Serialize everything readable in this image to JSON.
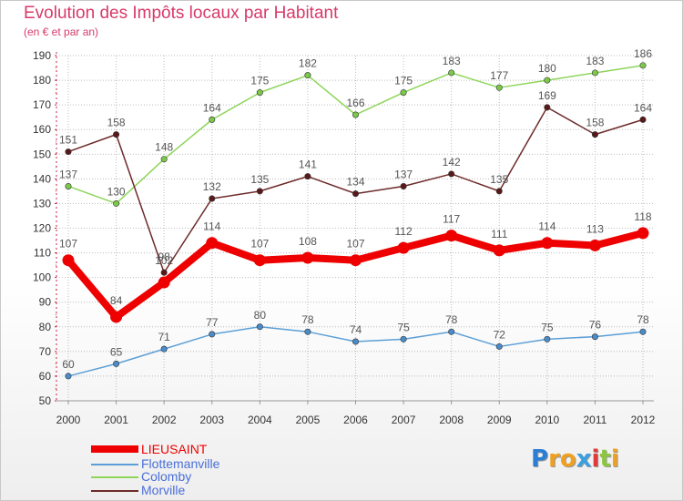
{
  "title": "Evolution des Impôts locaux par Habitant",
  "subtitle": "(en € et par an)",
  "chart_data": {
    "type": "line",
    "title": "Evolution des Impôts locaux par Habitant",
    "ylabel": "(en € et par an)",
    "xlabel": "",
    "ylim": [
      50,
      190
    ],
    "yticks": [
      "50",
      "60",
      "70",
      "80",
      "90",
      "100",
      "110",
      "120",
      "130",
      "140",
      "150",
      "160",
      "170",
      "180",
      "190"
    ],
    "categories": [
      "2000",
      "2001",
      "2002",
      "2003",
      "2004",
      "2005",
      "2006",
      "2007",
      "2008",
      "2009",
      "2010",
      "2011",
      "2012"
    ],
    "series": [
      {
        "name": "Colomby",
        "color": "#8fd55a",
        "dot": "#7cc84a",
        "values": [
          137,
          130,
          148,
          164,
          175,
          182,
          166,
          175,
          183,
          177,
          180,
          183,
          186
        ]
      },
      {
        "name": "Morville",
        "color": "#6e2a2a",
        "dot": "#5a1818",
        "values": [
          151,
          158,
          102,
          132,
          135,
          141,
          134,
          137,
          142,
          135,
          169,
          158,
          164
        ]
      },
      {
        "name": "Flottemanville",
        "color": "#5c9fd6",
        "dot": "#4a8bc8",
        "values": [
          60,
          65,
          71,
          77,
          80,
          78,
          74,
          75,
          78,
          72,
          75,
          76,
          78
        ]
      },
      {
        "name": "LIEUSAINT",
        "color": "#ee0000",
        "dot": "#ee0000",
        "values": [
          107,
          84,
          98,
          114,
          107,
          108,
          107,
          112,
          117,
          111,
          114,
          113,
          118
        ]
      }
    ],
    "data_labels": {
      "Colomby": [
        "137",
        "130",
        "148",
        "164",
        "175",
        "182",
        "166",
        "175",
        "183",
        "177",
        "180",
        "183",
        "186"
      ],
      "Morville": [
        "151",
        "158",
        "102",
        "132",
        "135",
        "141",
        "134",
        "137",
        "142",
        "135",
        "169",
        "158",
        "164"
      ],
      "Flottemanville": [
        "60",
        "65",
        "71",
        "77",
        "80",
        "78",
        "74",
        "75",
        "78",
        "72",
        "75",
        "76",
        "78"
      ],
      "LIEUSAINT": [
        "107",
        "84",
        "98",
        "114",
        "107",
        "108",
        "107",
        "112",
        "117",
        "111",
        "114",
        "113",
        "118"
      ]
    },
    "legend": [
      "LIEUSAINT",
      "Flottemanville",
      "Colomby",
      "Morville"
    ],
    "legend_position": "bottom-left"
  },
  "legend": [
    {
      "label": "LIEUSAINT",
      "color": "#ee0000"
    },
    {
      "label": "Flottemanville",
      "color": "#5c9fd6"
    },
    {
      "label": "Colomby",
      "color": "#8fd55a"
    },
    {
      "label": "Morville",
      "color": "#6e2a2a"
    }
  ],
  "logo": {
    "text": "Proxiti",
    "letters": [
      "P",
      "r",
      "o",
      "x",
      "i",
      "t",
      "i"
    ],
    "colors": [
      "#2a7fd4",
      "#f0a020",
      "#f0a020",
      "#3aa0e0",
      "#e03a3a",
      "#8cc63f",
      "#f0a020"
    ]
  }
}
